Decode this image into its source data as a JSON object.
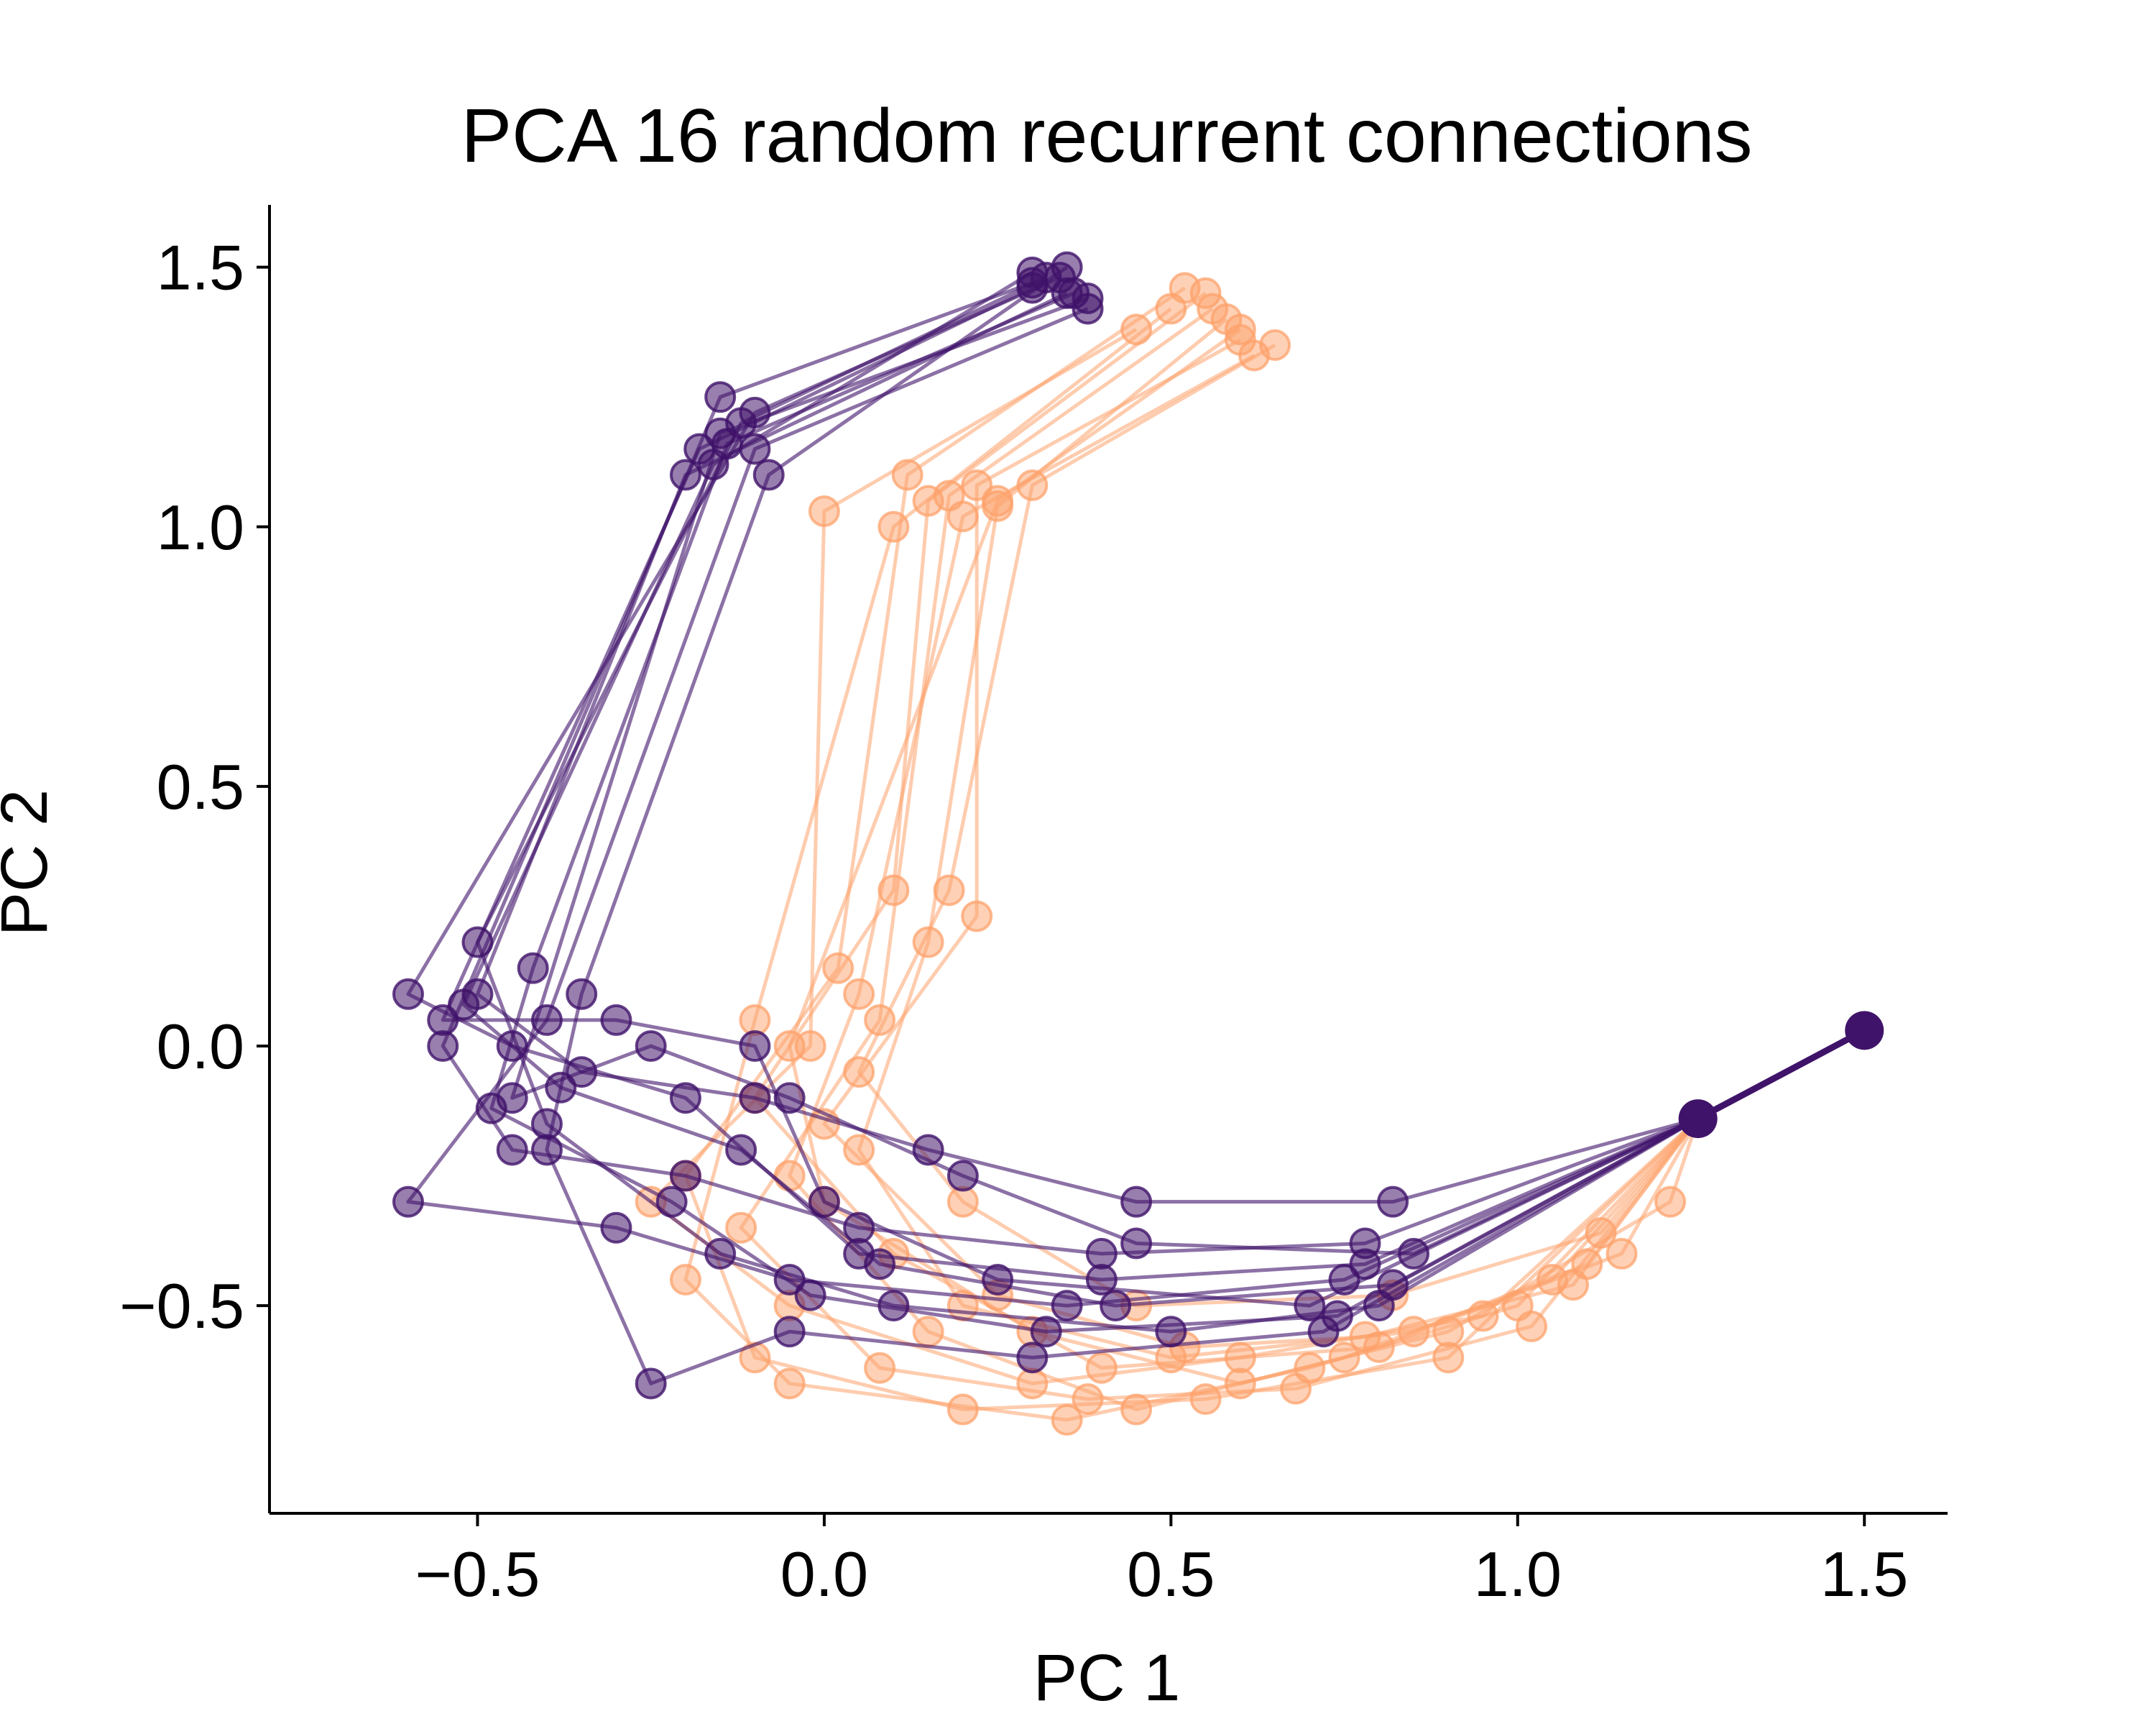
{
  "chart_data": {
    "type": "scatter",
    "title": "PCA 16 random recurrent connections",
    "xlabel": "PC 1",
    "ylabel": "PC 2",
    "xlim": [
      -0.8,
      1.62
    ],
    "ylim": [
      -0.9,
      1.62
    ],
    "xticks": [
      -0.5,
      0.0,
      0.5,
      1.0,
      1.5
    ],
    "xtick_labels": [
      "−0.5",
      "0.0",
      "0.5",
      "1.0",
      "1.5"
    ],
    "yticks": [
      -0.5,
      0.0,
      0.5,
      1.0,
      1.5
    ],
    "ytick_labels": [
      "−0.5",
      "0.0",
      "0.5",
      "1.0",
      "1.5"
    ],
    "grid": false,
    "legend": "none",
    "series": [
      {
        "color": "#FDA26B",
        "opacity": 0.55,
        "trajectories": [
          [
            [
              1.5,
              0.03
            ],
            [
              1.26,
              -0.14
            ],
            [
              1.22,
              -0.3
            ],
            [
              0.9,
              -0.55
            ],
            [
              0.6,
              -0.65
            ],
            [
              0.3,
              -0.55
            ],
            [
              0.0,
              -0.3
            ],
            [
              -0.05,
              0.0
            ],
            [
              0.25,
              1.05
            ],
            [
              0.6,
              1.38
            ]
          ],
          [
            [
              1.26,
              -0.14
            ],
            [
              1.15,
              -0.4
            ],
            [
              0.8,
              -0.58
            ],
            [
              0.4,
              -0.62
            ],
            [
              0.1,
              -0.4
            ],
            [
              -0.1,
              -0.1
            ],
            [
              0.1,
              0.3
            ],
            [
              0.15,
              1.05
            ],
            [
              0.55,
              1.45
            ]
          ],
          [
            [
              1.26,
              -0.14
            ],
            [
              1.05,
              -0.45
            ],
            [
              0.75,
              -0.6
            ],
            [
              0.45,
              -0.7
            ],
            [
              0.15,
              -0.55
            ],
            [
              -0.05,
              -0.25
            ],
            [
              0.05,
              0.1
            ],
            [
              0.2,
              1.02
            ],
            [
              0.62,
              1.33
            ]
          ],
          [
            [
              1.26,
              -0.14
            ],
            [
              1.0,
              -0.5
            ],
            [
              0.7,
              -0.62
            ],
            [
              0.35,
              -0.72
            ],
            [
              -0.05,
              -0.65
            ],
            [
              -0.2,
              -0.45
            ],
            [
              -0.1,
              0.05
            ],
            [
              0.1,
              1.0
            ],
            [
              0.5,
              1.42
            ]
          ],
          [
            [
              1.26,
              -0.14
            ],
            [
              1.1,
              -0.42
            ],
            [
              0.85,
              -0.55
            ],
            [
              0.5,
              -0.6
            ],
            [
              0.2,
              -0.5
            ],
            [
              0.05,
              -0.2
            ],
            [
              0.15,
              0.2
            ],
            [
              0.25,
              1.04
            ],
            [
              0.58,
              1.4
            ]
          ],
          [
            [
              1.26,
              -0.14
            ],
            [
              0.95,
              -0.52
            ],
            [
              0.6,
              -0.6
            ],
            [
              0.3,
              -0.65
            ],
            [
              -0.05,
              -0.5
            ],
            [
              -0.25,
              -0.3
            ],
            [
              -0.02,
              0.0
            ],
            [
              0.0,
              1.03
            ],
            [
              0.45,
              1.38
            ]
          ],
          [
            [
              1.26,
              -0.14
            ],
            [
              1.12,
              -0.36
            ],
            [
              0.82,
              -0.48
            ],
            [
              0.45,
              -0.5
            ],
            [
              0.2,
              -0.3
            ],
            [
              0.05,
              -0.05
            ],
            [
              0.18,
              0.3
            ],
            [
              0.3,
              1.08
            ],
            [
              0.65,
              1.35
            ]
          ],
          [
            [
              1.26,
              -0.14
            ],
            [
              0.9,
              -0.6
            ],
            [
              0.55,
              -0.68
            ],
            [
              0.2,
              -0.7
            ],
            [
              -0.1,
              -0.6
            ],
            [
              -0.2,
              -0.25
            ],
            [
              0.02,
              0.15
            ],
            [
              0.12,
              1.1
            ],
            [
              0.52,
              1.46
            ]
          ],
          [
            [
              1.26,
              -0.14
            ],
            [
              1.02,
              -0.54
            ],
            [
              0.68,
              -0.66
            ],
            [
              0.38,
              -0.68
            ],
            [
              0.08,
              -0.62
            ],
            [
              -0.12,
              -0.35
            ],
            [
              0.08,
              0.05
            ],
            [
              0.18,
              1.06
            ],
            [
              0.56,
              1.42
            ]
          ],
          [
            [
              1.26,
              -0.14
            ],
            [
              1.08,
              -0.46
            ],
            [
              0.78,
              -0.56
            ],
            [
              0.52,
              -0.58
            ],
            [
              0.25,
              -0.48
            ],
            [
              0.0,
              -0.15
            ],
            [
              0.22,
              0.25
            ],
            [
              0.22,
              1.08
            ],
            [
              0.6,
              1.36
            ]
          ]
        ]
      },
      {
        "color": "#40136A",
        "opacity": 0.6,
        "trajectories": [
          [
            [
              1.5,
              0.03
            ],
            [
              1.26,
              -0.14
            ],
            [
              0.82,
              -0.3
            ],
            [
              0.45,
              -0.3
            ],
            [
              0.15,
              -0.2
            ],
            [
              -0.1,
              -0.1
            ],
            [
              -0.35,
              -0.05
            ],
            [
              -0.5,
              0.1
            ],
            [
              -0.2,
              1.1
            ],
            [
              0.35,
              1.45
            ]
          ],
          [
            [
              1.26,
              -0.14
            ],
            [
              0.78,
              -0.38
            ],
            [
              0.4,
              -0.4
            ],
            [
              0.05,
              -0.35
            ],
            [
              -0.2,
              -0.25
            ],
            [
              -0.45,
              -0.2
            ],
            [
              -0.55,
              0.0
            ],
            [
              -0.15,
              1.25
            ],
            [
              0.3,
              1.47
            ]
          ],
          [
            [
              1.26,
              -0.14
            ],
            [
              0.75,
              -0.45
            ],
            [
              0.35,
              -0.5
            ],
            [
              -0.05,
              -0.45
            ],
            [
              -0.3,
              -0.35
            ],
            [
              -0.6,
              -0.3
            ],
            [
              -0.4,
              0.05
            ],
            [
              -0.1,
              1.15
            ],
            [
              0.38,
              1.42
            ]
          ],
          [
            [
              1.26,
              -0.14
            ],
            [
              0.8,
              -0.5
            ],
            [
              0.5,
              -0.55
            ],
            [
              0.1,
              -0.5
            ],
            [
              -0.15,
              -0.4
            ],
            [
              -0.4,
              -0.15
            ],
            [
              -0.5,
              0.2
            ],
            [
              -0.12,
              1.2
            ],
            [
              0.32,
              1.48
            ]
          ],
          [
            [
              1.26,
              -0.14
            ],
            [
              0.72,
              -0.55
            ],
            [
              0.3,
              -0.6
            ],
            [
              -0.05,
              -0.55
            ],
            [
              -0.25,
              -0.65
            ],
            [
              -0.4,
              -0.2
            ],
            [
              -0.35,
              0.1
            ],
            [
              -0.08,
              1.1
            ],
            [
              0.35,
              1.5
            ]
          ],
          [
            [
              1.26,
              -0.14
            ],
            [
              0.7,
              -0.5
            ],
            [
              0.25,
              -0.45
            ],
            [
              0.0,
              -0.3
            ],
            [
              -0.1,
              0.0
            ],
            [
              -0.3,
              0.05
            ],
            [
              -0.55,
              0.05
            ],
            [
              -0.18,
              1.15
            ],
            [
              0.3,
              1.46
            ]
          ],
          [
            [
              1.26,
              -0.14
            ],
            [
              0.85,
              -0.4
            ],
            [
              0.45,
              -0.38
            ],
            [
              0.2,
              -0.25
            ],
            [
              -0.05,
              -0.1
            ],
            [
              -0.25,
              0.0
            ],
            [
              -0.45,
              -0.1
            ],
            [
              -0.15,
              1.18
            ],
            [
              0.38,
              1.44
            ]
          ],
          [
            [
              1.26,
              -0.14
            ],
            [
              0.78,
              -0.42
            ],
            [
              0.4,
              -0.45
            ],
            [
              0.05,
              -0.4
            ],
            [
              -0.2,
              -0.1
            ],
            [
              -0.45,
              0.0
            ],
            [
              -0.6,
              0.1
            ],
            [
              -0.1,
              1.22
            ],
            [
              0.34,
              1.48
            ]
          ],
          [
            [
              1.26,
              -0.14
            ],
            [
              0.74,
              -0.52
            ],
            [
              0.32,
              -0.55
            ],
            [
              -0.02,
              -0.48
            ],
            [
              -0.22,
              -0.3
            ],
            [
              -0.48,
              -0.12
            ],
            [
              -0.42,
              0.15
            ],
            [
              -0.14,
              1.16
            ],
            [
              0.36,
              1.45
            ]
          ],
          [
            [
              1.26,
              -0.14
            ],
            [
              0.82,
              -0.46
            ],
            [
              0.42,
              -0.5
            ],
            [
              0.08,
              -0.42
            ],
            [
              -0.12,
              -0.2
            ],
            [
              -0.38,
              -0.08
            ],
            [
              -0.52,
              0.08
            ],
            [
              -0.16,
              1.12
            ],
            [
              0.3,
              1.49
            ]
          ]
        ]
      }
    ],
    "highlighted_points": [
      {
        "x": 1.5,
        "y": 0.03
      },
      {
        "x": 1.26,
        "y": -0.14
      }
    ]
  }
}
